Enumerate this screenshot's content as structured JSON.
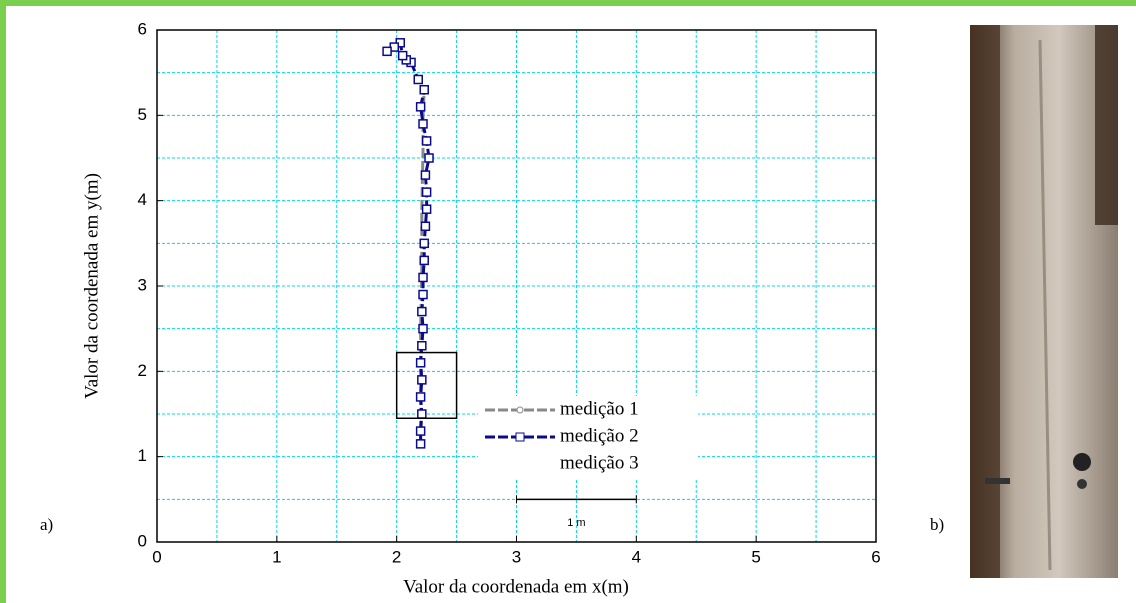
{
  "chart_data": {
    "type": "line",
    "xlabel": "Valor da coordenada em x(m)",
    "ylabel": "Valor da coordenada em y(m)",
    "xlim": [
      0,
      6
    ],
    "ylim": [
      0,
      6
    ],
    "xticks": [
      0,
      1,
      2,
      3,
      4,
      5,
      6
    ],
    "yticks": [
      0,
      1,
      2,
      3,
      4,
      5,
      6
    ],
    "xminor": [
      0.5,
      1.5,
      2.5,
      3.5,
      4.5,
      5.5
    ],
    "yminor": [
      0.5,
      1.5,
      2.5,
      3.5,
      4.5,
      5.5
    ],
    "grid": true,
    "grid_color": "#00d8f0",
    "series": [
      {
        "name": "medição 1",
        "color": "#888888",
        "x": [
          2.2,
          2.2,
          2.2,
          2.21,
          2.21,
          2.22,
          2.22,
          2.23
        ],
        "y": [
          1.15,
          1.8,
          2.5,
          3.2,
          3.9,
          4.6,
          5.0,
          5.3
        ]
      },
      {
        "name": "medição 2",
        "color": "#0a0a8c",
        "x": [
          2.2,
          2.2,
          2.21,
          2.2,
          2.21,
          2.2,
          2.21,
          2.22,
          2.21,
          2.22,
          2.22,
          2.23,
          2.23,
          2.24,
          2.25,
          2.25,
          2.24,
          2.27,
          2.25,
          2.22,
          2.2,
          2.23,
          2.18,
          2.12,
          2.08,
          2.05,
          2.03,
          1.98,
          1.92
        ],
        "y": [
          1.15,
          1.3,
          1.5,
          1.7,
          1.9,
          2.1,
          2.3,
          2.5,
          2.7,
          2.9,
          3.1,
          3.3,
          3.5,
          3.7,
          3.9,
          4.1,
          4.3,
          4.5,
          4.7,
          4.9,
          5.1,
          5.3,
          5.42,
          5.62,
          5.65,
          5.7,
          5.85,
          5.8,
          5.75
        ]
      },
      {
        "name": "medição 3",
        "color": "#ffffff",
        "x": [],
        "y": []
      }
    ],
    "highlight_box": {
      "x": [
        2,
        2.5
      ],
      "y": [
        1.45,
        2.22
      ]
    },
    "scale_bar": {
      "label": "1 m",
      "x": [
        3,
        4
      ],
      "y": 0.5
    },
    "panel_labels": [
      "a)",
      "b)"
    ]
  }
}
